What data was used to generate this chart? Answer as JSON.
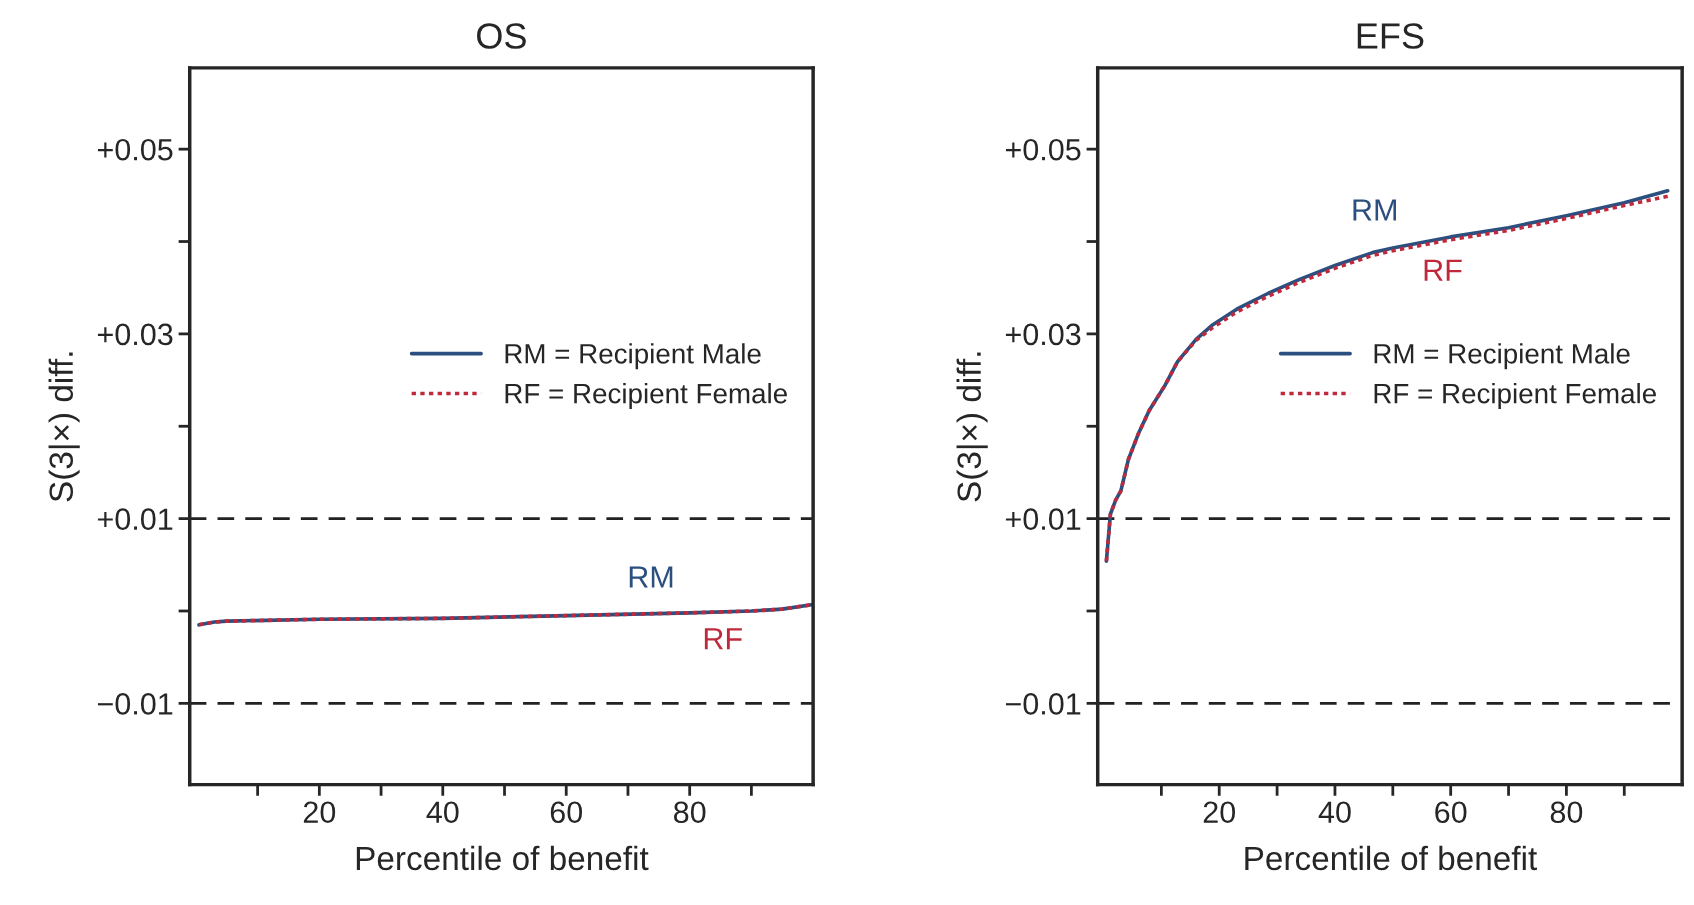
{
  "chart_data": [
    {
      "type": "line",
      "title": "OS",
      "xlabel": "Percentile of benefit",
      "ylabel": "S(3|×) diff.",
      "legend": "right",
      "grid": false,
      "xlim": [
        -1,
        100
      ],
      "xticks": [
        {
          "value": 10,
          "label": null
        },
        20,
        {
          "value": 30,
          "label": null
        },
        40,
        {
          "value": 50,
          "label": null
        },
        60,
        {
          "value": 70,
          "label": null
        },
        80,
        {
          "value": 90,
          "label": null
        }
      ],
      "ylim": [
        -0.0188,
        0.0588
      ],
      "yticks": [
        {
          "value": -0.01,
          "label": "−0.01"
        },
        {
          "value": 0,
          "label": null
        },
        {
          "value": 0.01,
          "label": "+0.01"
        },
        {
          "value": 0.02,
          "label": null
        },
        {
          "value": 0.03,
          "label": "+0.03"
        },
        {
          "value": 0.04,
          "label": null
        },
        {
          "value": 0.05,
          "label": "+0.05"
        }
      ],
      "x": [
        0.5,
        3,
        5,
        20,
        40,
        60,
        80,
        90,
        95,
        100
      ],
      "series": [
        {
          "name": "RM = Recipient Male",
          "color": "#2b4f7e",
          "line_style": "solid",
          "values": [
            -0.0015,
            -0.0012,
            -0.0011,
            -0.0009,
            -0.0008,
            -0.0005,
            -0.0002,
            0,
            0.0002,
            0.0007
          ]
        },
        {
          "name": "RF = Recipient Female",
          "color": "#c0283c",
          "line_style": "dotted",
          "values": [
            -0.0015,
            -0.0012,
            -0.0011,
            -0.0009,
            -0.0008,
            -0.0005,
            -0.0002,
            0,
            0.0002,
            0.0007
          ]
        }
      ],
      "ref_lines": [
        {
          "axis": "y",
          "value": 0.01,
          "color": "#222222",
          "line_style": "dashed"
        },
        {
          "axis": "y",
          "value": -0.01,
          "color": "#222222",
          "line_style": "dashed"
        }
      ],
      "annotations": [
        "RM",
        "RF"
      ]
    },
    {
      "type": "line",
      "title": "EFS",
      "xlabel": "Percentile of benefit",
      "ylabel": "S(3|×) diff.",
      "legend": "right",
      "grid": false,
      "xlim": [
        -1,
        100
      ],
      "xticks": [
        {
          "value": 10,
          "label": null
        },
        20,
        {
          "value": 30,
          "label": null
        },
        40,
        {
          "value": 50,
          "label": null
        },
        60,
        {
          "value": 70,
          "label": null
        },
        80,
        {
          "value": 90,
          "label": null
        }
      ],
      "ylim": [
        -0.0188,
        0.0588
      ],
      "yticks": [
        {
          "value": -0.01,
          "label": "−0.01"
        },
        {
          "value": 0,
          "label": null
        },
        {
          "value": 0.01,
          "label": "+0.01"
        },
        {
          "value": 0.02,
          "label": null
        },
        {
          "value": 0.03,
          "label": "+0.03"
        },
        {
          "value": 0.04,
          "label": null
        },
        {
          "value": 0.05,
          "label": "+0.05"
        }
      ],
      "x": [
        0.5,
        1.2,
        2.1,
        3.0,
        4.3,
        6.1,
        7.9,
        10.6,
        12.8,
        16,
        18.7,
        23.1,
        28.5,
        33.9,
        40,
        46.5,
        50,
        60,
        70,
        80,
        90,
        97.5
      ],
      "series": [
        {
          "name": "RM = Recipient Male",
          "color": "#2b4f7e",
          "line_style": "solid",
          "values": [
            0.0054,
            0.0105,
            0.012,
            0.013,
            0.0164,
            0.0193,
            0.0217,
            0.0244,
            0.027,
            0.0294,
            0.0309,
            0.0327,
            0.0344,
            0.0359,
            0.0374,
            0.0388,
            0.0393,
            0.0405,
            0.0415,
            0.0428,
            0.0442,
            0.0455
          ]
        },
        {
          "name": "RF = Recipient Female",
          "color": "#c0283c",
          "line_style": "dotted",
          "values": [
            0.0054,
            0.0105,
            0.012,
            0.013,
            0.0164,
            0.0193,
            0.0217,
            0.0244,
            0.027,
            0.0293,
            0.0306,
            0.0324,
            0.0341,
            0.0356,
            0.0371,
            0.0385,
            0.039,
            0.0402,
            0.0412,
            0.0425,
            0.0439,
            0.0449
          ]
        }
      ],
      "ref_lines": [
        {
          "axis": "y",
          "value": 0.01,
          "color": "#222222",
          "line_style": "dashed"
        },
        {
          "axis": "y",
          "value": -0.01,
          "color": "#222222",
          "line_style": "dashed"
        }
      ],
      "annotations": [
        "RM",
        "RF"
      ]
    }
  ]
}
